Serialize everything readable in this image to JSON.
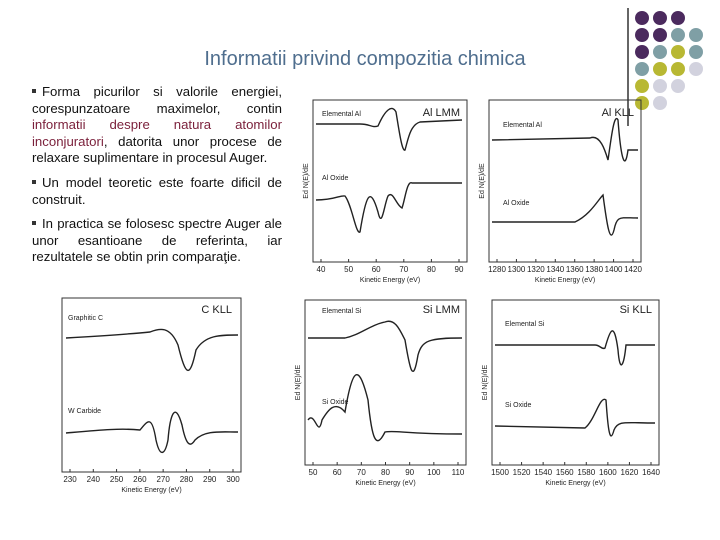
{
  "title": "Informatii privind compozitia chimica",
  "bullets": [
    {
      "segments": [
        "Forma picurilor si valorile energiei, corespunzatoare maximelor, contin ",
        "informatii despre natura atomilor inconjuratori",
        ", datorita unor procese de relaxare suplimentare in procesul Auger."
      ]
    },
    {
      "segments": [
        "Un model teoretic este foarte dificil de construit."
      ]
    },
    {
      "segments": [
        "In practica se folosesc spectre Auger ale unor esantioane de referinta, iar rezultatele se obtin prin comparaţie."
      ]
    }
  ],
  "figures": [
    {
      "title": "Al LMM",
      "labels": [
        "Elemental Al",
        "Al Oxide"
      ],
      "x_label": "Kinetic Energy (eV)",
      "y_label": "Ed N(E)/dE",
      "xticks": [
        40,
        50,
        60,
        70,
        80,
        90
      ]
    },
    {
      "title": "Al KLL",
      "labels": [
        "Elemental Al",
        "Al Oxide"
      ],
      "x_label": "Kinetic Energy (eV)",
      "y_label": "Ed N(E)/dE",
      "xticks": [
        1280,
        1300,
        1320,
        1340,
        1360,
        1380,
        1400,
        1420
      ]
    },
    {
      "title": "C KLL",
      "labels": [
        "Graphitic C",
        "W Carbide"
      ],
      "x_label": "Kinetic Energy (eV)",
      "xticks": [
        230,
        240,
        250,
        260,
        270,
        280,
        290,
        300
      ]
    },
    {
      "title": "Si LMM",
      "labels": [
        "Elemental Si",
        "Si Oxide"
      ],
      "x_label": "Kinetic Energy (eV)",
      "y_label": "Ed N(E)/dE",
      "xticks": [
        50,
        60,
        70,
        80,
        90,
        100,
        110
      ]
    },
    {
      "title": "Si KLL",
      "labels": [
        "Elemental Si",
        "Si Oxide"
      ],
      "x_label": "Kinetic Energy (eV)",
      "y_label": "Ed N(E)/dE",
      "xticks": [
        1500,
        1520,
        1540,
        1560,
        1580,
        1600,
        1620,
        1640
      ]
    }
  ]
}
